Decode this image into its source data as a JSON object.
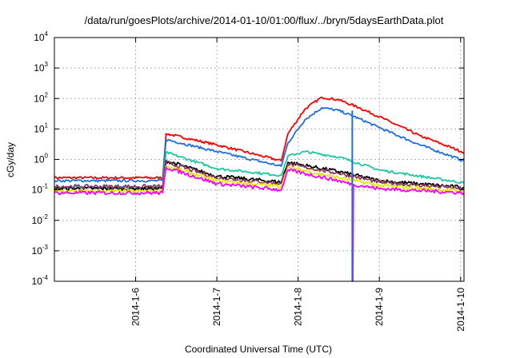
{
  "chart_data": {
    "type": "line",
    "title": "/data/run/goesPlots/archive/2014-01-10/01:00/flux/../bryn/5daysEarthData.plot",
    "xlabel": "Coordinated Universal Time (UTC)",
    "ylabel": "cGy/day",
    "y_scale": "log",
    "ylim": [
      0.0001,
      10000
    ],
    "y_ticks": [
      {
        "base": "10",
        "exp": "-4",
        "value": 0.0001
      },
      {
        "base": "10",
        "exp": "-3",
        "value": 0.001
      },
      {
        "base": "10",
        "exp": "-2",
        "value": 0.01
      },
      {
        "base": "10",
        "exp": "-1",
        "value": 0.1
      },
      {
        "base": "10",
        "exp": "0",
        "value": 1
      },
      {
        "base": "10",
        "exp": "1",
        "value": 10
      },
      {
        "base": "10",
        "exp": "2",
        "value": 100
      },
      {
        "base": "10",
        "exp": "3",
        "value": 1000
      },
      {
        "base": "10",
        "exp": "4",
        "value": 10000
      }
    ],
    "xlim": [
      "2014-01-05 00:00",
      "2014-01-10 01:00"
    ],
    "x_ticks": [
      {
        "label": "2014-1-6",
        "value": "2014-01-06"
      },
      {
        "label": "2014-1-7",
        "value": "2014-01-07"
      },
      {
        "label": "2014-1-8",
        "value": "2014-01-08"
      },
      {
        "label": "2014-1-9",
        "value": "2014-01-09"
      },
      {
        "label": "2014-1-10",
        "value": "2014-01-10"
      }
    ],
    "grid": true,
    "series": [
      {
        "color": "#ff0000",
        "x": [
          "2014-01-05 00:00",
          "2014-01-06 08:00",
          "2014-01-06 09:00",
          "2014-01-07 00:00",
          "2014-01-07 19:00",
          "2014-01-07 21:00",
          "2014-01-08 02:00",
          "2014-01-08 07:00",
          "2014-01-08 12:00",
          "2014-01-08 18:00",
          "2014-01-09 00:00",
          "2014-01-09 12:00",
          "2014-01-10 01:00"
        ],
        "values": [
          0.25,
          0.25,
          7,
          3,
          0.9,
          7,
          45,
          110,
          90,
          50,
          25,
          6,
          1.7
        ]
      },
      {
        "color": "#1e6fe0",
        "x": [
          "2014-01-05 00:00",
          "2014-01-06 08:00",
          "2014-01-06 09:00",
          "2014-01-07 00:00",
          "2014-01-07 19:00",
          "2014-01-07 21:00",
          "2014-01-08 02:00",
          "2014-01-08 07:00",
          "2014-01-08 12:00",
          "2014-01-08 18:00",
          "2014-01-09 00:00",
          "2014-01-09 12:00",
          "2014-01-10 01:00"
        ],
        "values": [
          0.2,
          0.2,
          4.5,
          1.8,
          0.6,
          3.5,
          20,
          50,
          40,
          22,
          11,
          3,
          0.9
        ]
      },
      {
        "color": "#1ec8a0",
        "x": [
          "2014-01-05 00:00",
          "2014-01-06 08:00",
          "2014-01-06 09:00",
          "2014-01-07 00:00",
          "2014-01-07 19:00",
          "2014-01-07 21:00",
          "2014-01-08 02:00",
          "2014-01-08 12:00",
          "2014-01-09 00:00",
          "2014-01-10 01:00"
        ],
        "values": [
          0.12,
          0.12,
          1.7,
          0.5,
          0.3,
          1.3,
          1.8,
          1.2,
          0.45,
          0.17
        ]
      },
      {
        "color": "#000000",
        "x": [
          "2014-01-05 00:00",
          "2014-01-06 08:00",
          "2014-01-06 09:00",
          "2014-01-07 00:00",
          "2014-01-07 19:00",
          "2014-01-07 21:00",
          "2014-01-08 12:00",
          "2014-01-09 00:00",
          "2014-01-10 01:00"
        ],
        "values": [
          0.11,
          0.11,
          0.9,
          0.28,
          0.18,
          0.8,
          0.4,
          0.2,
          0.12
        ]
      },
      {
        "color": "#8b3a62",
        "x": [
          "2014-01-05 00:00",
          "2014-01-06 08:00",
          "2014-01-06 09:00",
          "2014-01-07 00:00",
          "2014-01-07 19:00",
          "2014-01-07 21:00",
          "2014-01-08 12:00",
          "2014-01-09 00:00",
          "2014-01-10 01:00"
        ],
        "values": [
          0.13,
          0.13,
          0.8,
          0.25,
          0.16,
          0.7,
          0.35,
          0.18,
          0.11
        ]
      },
      {
        "color": "#e6e600",
        "x": [
          "2014-01-05 00:00",
          "2014-01-06 08:00",
          "2014-01-06 09:00",
          "2014-01-07 00:00",
          "2014-01-07 19:00",
          "2014-01-07 21:00",
          "2014-01-08 12:00",
          "2014-01-09 00:00",
          "2014-01-10 01:00"
        ],
        "values": [
          0.09,
          0.09,
          0.6,
          0.2,
          0.13,
          0.55,
          0.25,
          0.14,
          0.09
        ]
      },
      {
        "color": "#ff00ff",
        "x": [
          "2014-01-05 00:00",
          "2014-01-06 08:00",
          "2014-01-06 09:00",
          "2014-01-07 00:00",
          "2014-01-07 19:00",
          "2014-01-07 21:00",
          "2014-01-08 12:00",
          "2014-01-08 16:00",
          "2014-01-08 16:10",
          "2014-01-08 16:20",
          "2014-01-09 00:00",
          "2014-01-10 01:00"
        ],
        "values": [
          0.08,
          0.08,
          0.55,
          0.16,
          0.1,
          0.45,
          0.2,
          0.15,
          0.0001,
          0.15,
          0.11,
          0.08
        ]
      }
    ],
    "annotations": [
      {
        "type": "vertical-line",
        "color": "#1e6fe0",
        "x": "2014-01-08 16:00",
        "y_from": 0.0001,
        "y_to": 40
      }
    ]
  }
}
